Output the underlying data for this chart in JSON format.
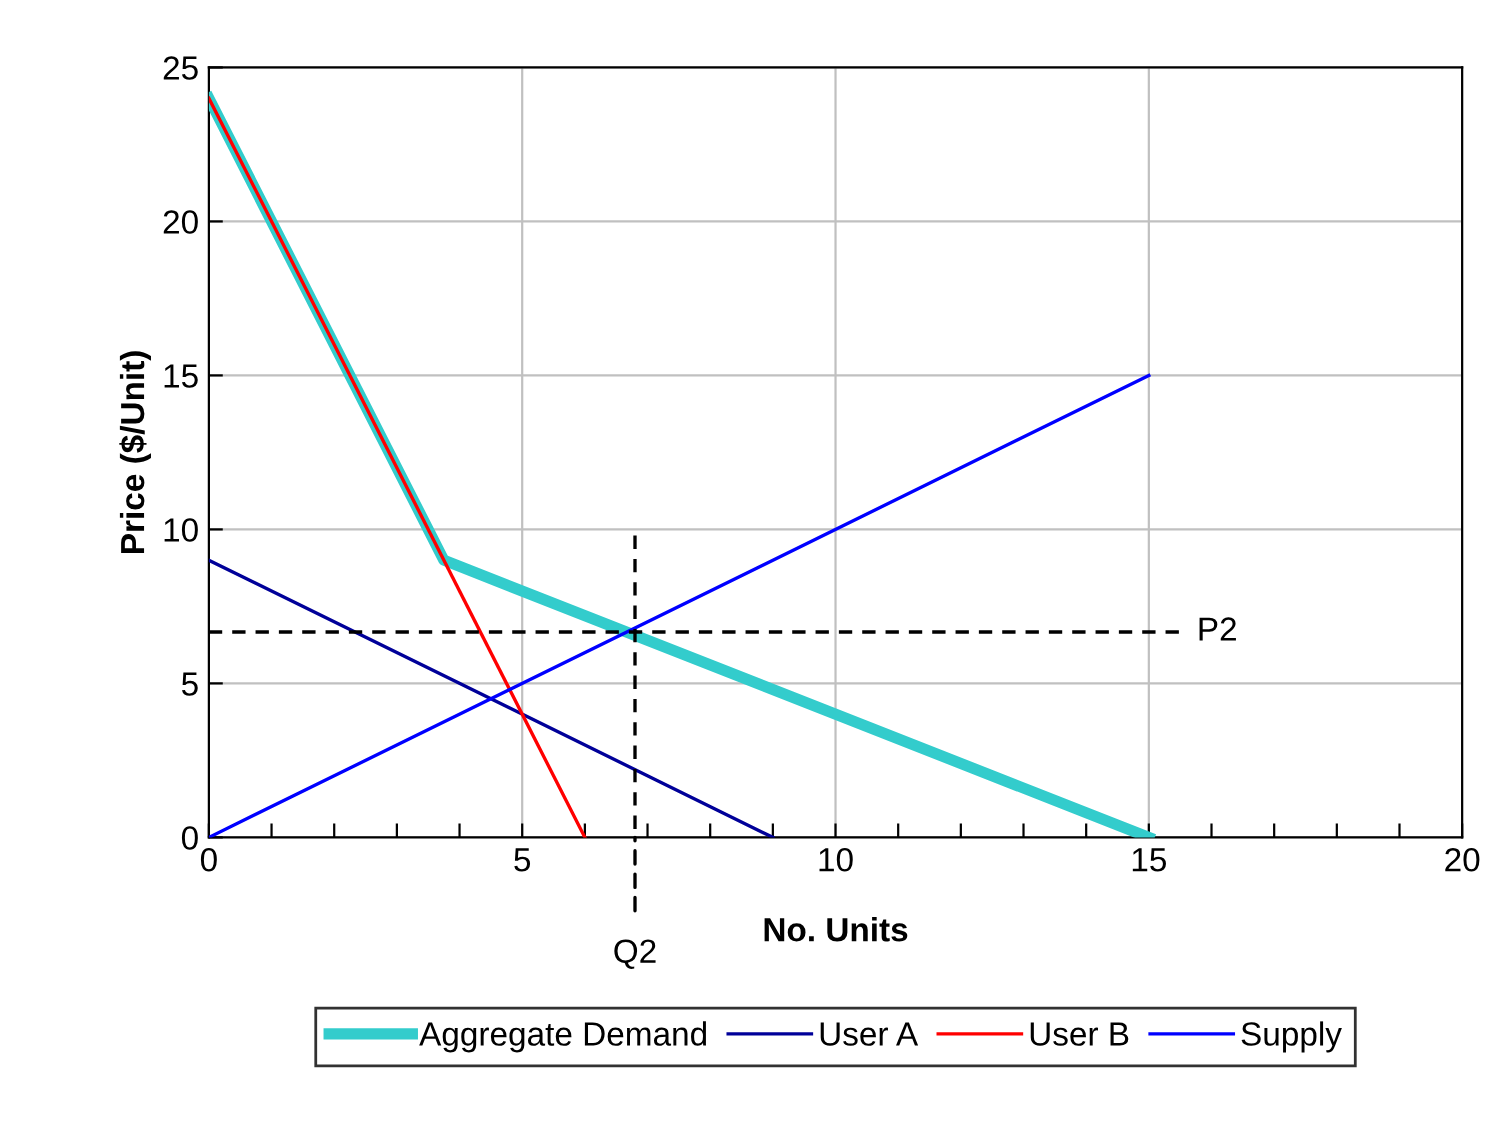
{
  "chart_data": {
    "type": "line",
    "xlabel": "No. Units",
    "ylabel": "Price ($/Unit)",
    "xlim": [
      0,
      20
    ],
    "ylim": [
      0,
      25
    ],
    "xticks": [
      0,
      {
        "value": 1,
        "label": null
      },
      {
        "value": 2,
        "label": null
      },
      {
        "value": 3,
        "label": null
      },
      {
        "value": 4,
        "label": null
      },
      5,
      {
        "value": 6,
        "label": null
      },
      {
        "value": 7,
        "label": null
      },
      {
        "value": 8,
        "label": null
      },
      {
        "value": 9,
        "label": null
      },
      10,
      {
        "value": 11,
        "label": null
      },
      {
        "value": 12,
        "label": null
      },
      {
        "value": 13,
        "label": null
      },
      {
        "value": 14,
        "label": null
      },
      15,
      {
        "value": 16,
        "label": null
      },
      {
        "value": 17,
        "label": null
      },
      {
        "value": 18,
        "label": null
      },
      {
        "value": 19,
        "label": null
      },
      20
    ],
    "yticks": [
      0,
      5,
      10,
      15,
      20,
      25
    ],
    "grid": true,
    "legend": "bottom",
    "marker": "none",
    "line_style": "solid",
    "series": [
      {
        "name": "Aggregate Demand",
        "color": "#33cccc",
        "x": [
          0,
          3.75,
          15
        ],
        "values": [
          24,
          9,
          0
        ]
      },
      {
        "name": "User A",
        "color": "#000099",
        "x": [
          0,
          9
        ],
        "values": [
          9,
          0
        ]
      },
      {
        "name": "User B",
        "color": "#ff0000",
        "x": [
          0,
          6
        ],
        "values": [
          24,
          0
        ]
      },
      {
        "name": "Supply",
        "color": "#0000ff",
        "x": [
          0,
          15
        ],
        "values": [
          0,
          15
        ]
      },
      {
        "color": "#000000",
        "line_style": "dashed",
        "x": [
          0,
          15.5
        ],
        "values": [
          6.67,
          6.67
        ]
      },
      {
        "color": "#000000",
        "line_style": "dashed",
        "x": [
          6.8,
          6.8
        ],
        "values": [
          9.8,
          0
        ]
      }
    ],
    "annotations": [
      {
        "text": "P2",
        "x": 15.5,
        "y": 6.67
      },
      {
        "text": "Q2",
        "x": 6.8,
        "y": 0
      }
    ]
  }
}
